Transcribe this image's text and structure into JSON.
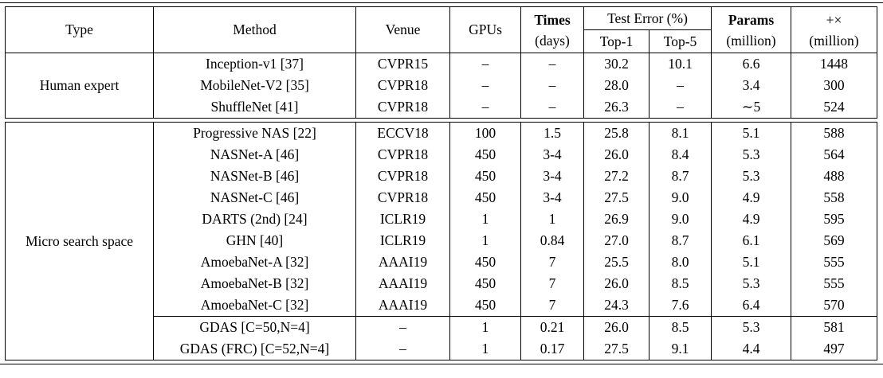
{
  "colors": {
    "text": "#000000",
    "background": "#ffffff",
    "border": "#000000"
  },
  "table": {
    "header": {
      "type": "Type",
      "method": "Method",
      "venue": "Venue",
      "gpus": "GPUs",
      "times_line1": "Times",
      "times_line2": "(days)",
      "test_error": "Test Error (%)",
      "top1": "Top-1",
      "top5": "Top-5",
      "params_line1": "Params",
      "params_line2": "(million)",
      "madds_line1": "+×",
      "madds_line2": "(million)"
    },
    "sections": [
      {
        "type": "Human expert",
        "groups": [
          [
            {
              "cells": [
                "Inception-v1 [37]",
                "CVPR15",
                "–",
                "–",
                "30.2",
                "10.1",
                "6.6",
                "1448"
              ],
              "bold": []
            },
            {
              "cells": [
                "MobileNet-V2 [35]",
                "CVPR18",
                "–",
                "–",
                "28.0",
                "–",
                "3.4",
                "300"
              ],
              "bold": []
            },
            {
              "cells": [
                "ShuffleNet [41]",
                "CVPR18",
                "–",
                "–",
                "26.3",
                "–",
                "∼5",
                "524"
              ],
              "bold": []
            }
          ]
        ]
      },
      {
        "type": "Micro search space",
        "groups": [
          [
            {
              "cells": [
                "Progressive NAS [22]",
                "ECCV18",
                "100",
                "1.5",
                "25.8",
                "8.1",
                "5.1",
                "588"
              ],
              "bold": []
            },
            {
              "cells": [
                "NASNet-A [46]",
                "CVPR18",
                "450",
                "3-4",
                "26.0",
                "8.4",
                "5.3",
                "564"
              ],
              "bold": []
            },
            {
              "cells": [
                "NASNet-B [46]",
                "CVPR18",
                "450",
                "3-4",
                "27.2",
                "8.7",
                "5.3",
                "488"
              ],
              "bold": []
            },
            {
              "cells": [
                "NASNet-C [46]",
                "CVPR18",
                "450",
                "3-4",
                "27.5",
                "9.0",
                "4.9",
                "558"
              ],
              "bold": []
            },
            {
              "cells": [
                "DARTS (2nd) [24]",
                "ICLR19",
                "1",
                "1",
                "26.9",
                "9.0",
                "4.9",
                "595"
              ],
              "bold": []
            },
            {
              "cells": [
                "GHN [40]",
                "ICLR19",
                "1",
                "0.84",
                "27.0",
                "8.7",
                "6.1",
                "569"
              ],
              "bold": []
            },
            {
              "cells": [
                "AmoebaNet-A [32]",
                "AAAI19",
                "450",
                "7",
                "25.5",
                "8.0",
                "5.1",
                "555"
              ],
              "bold": []
            },
            {
              "cells": [
                "AmoebaNet-B [32]",
                "AAAI19",
                "450",
                "7",
                "26.0",
                "8.5",
                "5.3",
                "555"
              ],
              "bold": []
            },
            {
              "cells": [
                "AmoebaNet-C [32]",
                "AAAI19",
                "450",
                "7",
                "24.3",
                "7.6",
                "6.4",
                "570"
              ],
              "bold": [
                4,
                5
              ]
            }
          ],
          [
            {
              "cells": [
                "GDAS [C=50,N=4]",
                "–",
                "1",
                "0.21",
                "26.0",
                "8.5",
                "5.3",
                "581"
              ],
              "bold": []
            },
            {
              "cells": [
                "GDAS (FRC) [C=52,N=4]",
                "–",
                "1",
                "0.17",
                "27.5",
                "9.1",
                "4.4",
                "497"
              ],
              "bold": [
                2,
                3,
                6,
                7
              ]
            }
          ]
        ]
      }
    ]
  }
}
